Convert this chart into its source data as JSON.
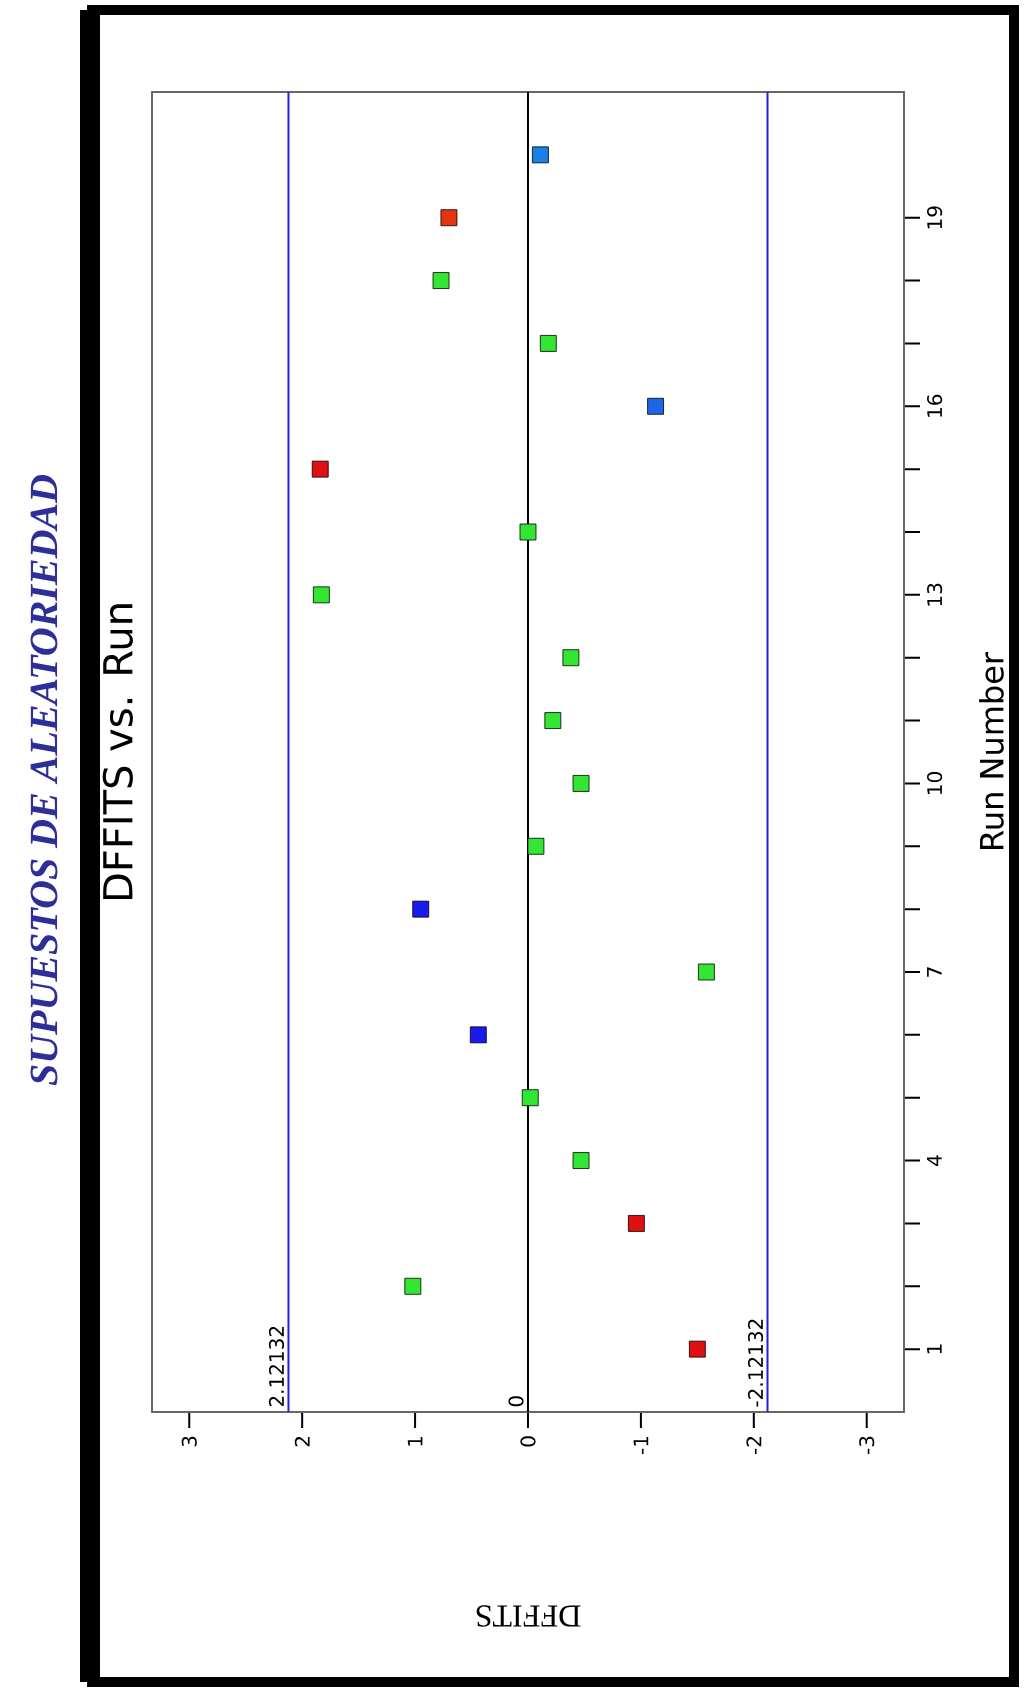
{
  "chart_data": {
    "type": "scatter",
    "title": "SUPUESTOS DE ALEATORIEDAD",
    "subtitle": "DFFITS vs. Run",
    "xlabel": "DFFITS",
    "ylabel": "Run Number",
    "x": [
      -1.5,
      1.02,
      -0.96,
      -0.47,
      -0.02,
      0.44,
      -1.58,
      0.95,
      -0.07,
      -0.47,
      -0.22,
      -0.38,
      1.83,
      0.0,
      1.84,
      -1.13,
      -0.18,
      0.77,
      0.7,
      -0.11
    ],
    "values": [
      1,
      2,
      3,
      4,
      5,
      6,
      7,
      8,
      9,
      10,
      11,
      12,
      13,
      14,
      15,
      16,
      17,
      18,
      19,
      20
    ],
    "colors": [
      "#e01010",
      "#33e633",
      "#e01010",
      "#33e633",
      "#33e633",
      "#1a1aee",
      "#33e633",
      "#1a1aee",
      "#33e633",
      "#33e633",
      "#33e633",
      "#33e633",
      "#33e633",
      "#33e633",
      "#e01010",
      "#1a66e6",
      "#33e633",
      "#33e633",
      "#e63310",
      "#1a80e6"
    ],
    "marker": "square",
    "xlim": [
      3.33,
      -3.33
    ],
    "ylim": [
      0,
      21
    ],
    "xticks": [
      3,
      2,
      1,
      0,
      -1,
      -2,
      -3
    ],
    "yticks": [
      1,
      {
        "value": 2,
        "label": null
      },
      {
        "value": 3,
        "label": null
      },
      4,
      {
        "value": 5,
        "label": null
      },
      {
        "value": 6,
        "label": null
      },
      7,
      {
        "value": 8,
        "label": null
      },
      {
        "value": 9,
        "label": null
      },
      10,
      {
        "value": 11,
        "label": null
      },
      {
        "value": 12,
        "label": null
      },
      13,
      {
        "value": 14,
        "label": null
      },
      {
        "value": 15,
        "label": null
      },
      16,
      {
        "value": 17,
        "label": null
      },
      {
        "value": 18,
        "label": null
      },
      19
    ],
    "ref_lines": [
      {
        "axis": "x",
        "value": 2.12132,
        "label": "2.12132",
        "color": "#2020d8"
      },
      {
        "axis": "x",
        "value": 0,
        "label": "0",
        "color": "#000000"
      },
      {
        "axis": "x",
        "value": -2.12132,
        "label": "-2.12132",
        "color": "#2020d8"
      }
    ]
  }
}
